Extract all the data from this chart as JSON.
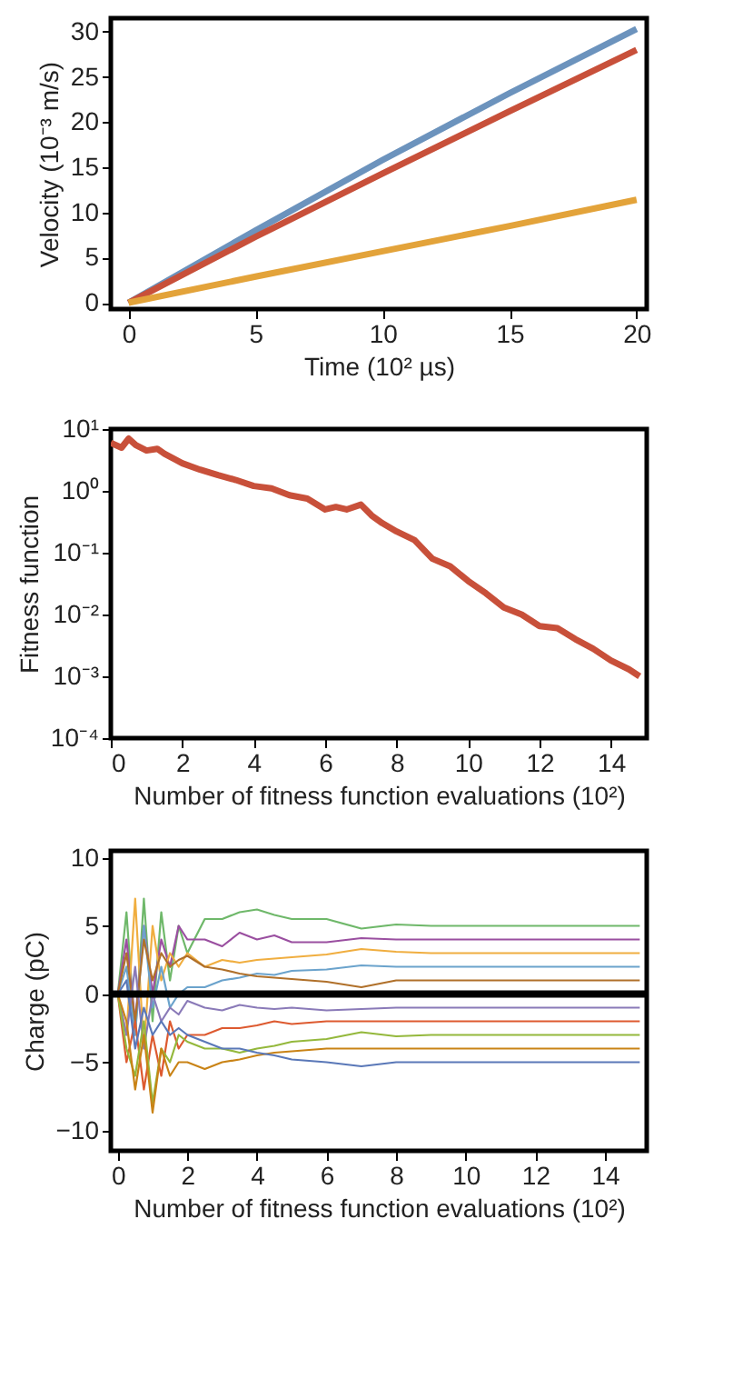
{
  "chart_data": [
    {
      "type": "line",
      "xlabel": "Time (10² µs)",
      "ylabel": "Velocity (10⁻³ m/s)",
      "xlim": [
        -0.7,
        20.4
      ],
      "ylim": [
        -0.7,
        31.5
      ],
      "xticks": [
        0,
        5,
        10,
        15,
        20
      ],
      "yticks": [
        0,
        5,
        10,
        15,
        20,
        25,
        30
      ],
      "grid": false,
      "legend": false,
      "marker": "none",
      "line_style": "solid",
      "x": [
        0,
        5,
        10,
        15,
        20
      ],
      "series": [
        {
          "color": "#6c93bd",
          "values": [
            0,
            8,
            15.8,
            23.2,
            30.3
          ]
        },
        {
          "color": "#c8503a",
          "values": [
            0,
            7.3,
            14.3,
            21.2,
            28
          ]
        },
        {
          "color": "#e3a33a",
          "values": [
            0,
            2.9,
            5.7,
            8.5,
            11.4
          ]
        }
      ]
    },
    {
      "type": "line",
      "xlabel": "Number of fitness function evaluations (10²)",
      "ylabel": "Fitness function",
      "log": "y",
      "xlim": [
        0,
        15
      ],
      "ylim": [
        0.0001,
        10
      ],
      "xticks": [
        0,
        2,
        4,
        6,
        8,
        10,
        12,
        14
      ],
      "yticks": [
        {
          "value": 10,
          "label": "10¹"
        },
        {
          "value": 1,
          "label": "10⁰"
        },
        {
          "value": 0.1,
          "label": "10⁻¹"
        },
        {
          "value": 0.01,
          "label": "10⁻²"
        },
        {
          "value": 0.001,
          "label": "10⁻³"
        },
        {
          "value": 0.0001,
          "label": "10⁻⁴"
        }
      ],
      "grid": false,
      "legend": false,
      "marker": "none",
      "line_style": "solid",
      "x": [
        0,
        0.3,
        0.5,
        0.7,
        1,
        1.3,
        1.5,
        2,
        2.5,
        3,
        3.5,
        4,
        4.5,
        5,
        5.5,
        6,
        6.3,
        6.6,
        7,
        7.3,
        7.6,
        8,
        8.5,
        9,
        9.5,
        10,
        10.5,
        11,
        11.5,
        12,
        12.5,
        13,
        13.5,
        14,
        14.5,
        14.8
      ],
      "series": [
        {
          "color": "#c8503a",
          "values": [
            6,
            5,
            7,
            5.5,
            4.5,
            4.8,
            4,
            2.8,
            2.2,
            1.8,
            1.5,
            1.2,
            1.1,
            0.85,
            0.75,
            0.5,
            0.55,
            0.5,
            0.6,
            0.4,
            0.3,
            0.22,
            0.16,
            0.08,
            0.06,
            0.035,
            0.022,
            0.013,
            0.01,
            0.0065,
            0.006,
            0.004,
            0.0028,
            0.0018,
            0.0013,
            0.001
          ]
        }
      ]
    },
    {
      "type": "line",
      "xlabel": "Number of fitness function evaluations (10²)",
      "ylabel": "Charge (pC)",
      "xlim": [
        -0.2,
        15.2
      ],
      "ylim": [
        -11.5,
        10.5
      ],
      "xticks": [
        0,
        2,
        4,
        6,
        8,
        10,
        12,
        14
      ],
      "yticks": [
        -10,
        -5,
        0,
        5,
        10
      ],
      "grid": false,
      "legend": false,
      "marker": "none",
      "line_style": "solid",
      "ref_lines": [
        {
          "axis": "y",
          "value": 0,
          "color": "#000000"
        }
      ],
      "x": [
        0,
        0.25,
        0.5,
        0.75,
        1,
        1.25,
        1.5,
        1.75,
        2,
        2.5,
        3,
        3.5,
        4,
        4.5,
        5,
        6,
        7,
        8,
        9,
        10,
        12,
        15
      ],
      "series": [
        {
          "color": "#6fb86a",
          "values": [
            0,
            6,
            -3,
            7,
            -2,
            6,
            1,
            5,
            3,
            5.5,
            5.5,
            6,
            6.2,
            5.8,
            5.5,
            5.5,
            4.8,
            5.1,
            5,
            5,
            5,
            5
          ]
        },
        {
          "color": "#9a4fa0",
          "values": [
            0,
            4,
            -2,
            5,
            0,
            4,
            2,
            5,
            4,
            4,
            3.5,
            4.5,
            4,
            4.3,
            3.8,
            3.8,
            4.1,
            4,
            4,
            4,
            4,
            4
          ]
        },
        {
          "color": "#f0ae40",
          "values": [
            0,
            -3,
            7,
            -4,
            5,
            1,
            3,
            2,
            3,
            2,
            2.5,
            2.3,
            2.5,
            2.6,
            2.7,
            2.9,
            3.3,
            3.1,
            3,
            3,
            3,
            3
          ]
        },
        {
          "color": "#6ba3cc",
          "values": [
            0,
            2,
            -3,
            5,
            -1,
            2,
            -1,
            0,
            0.5,
            0.5,
            1,
            1.2,
            1.5,
            1.4,
            1.7,
            1.8,
            2.1,
            2,
            2,
            2,
            2,
            2
          ]
        },
        {
          "color": "#b0702a",
          "values": [
            0,
            3,
            -2,
            4,
            1,
            3,
            2,
            2.5,
            2.8,
            2,
            1.8,
            1.5,
            1.3,
            1.2,
            1.1,
            0.9,
            0.5,
            1,
            1,
            1,
            1,
            1
          ]
        },
        {
          "color": "#8a7ab8",
          "values": [
            0,
            -3,
            2,
            -4,
            0,
            -2,
            -1,
            -1.5,
            -0.5,
            -1,
            -1.2,
            -0.8,
            -1,
            -1.1,
            -1,
            -1.2,
            -1.1,
            -1,
            -1,
            -1,
            -1,
            -1
          ]
        },
        {
          "color": "#dd5a30",
          "values": [
            0,
            -5,
            -2,
            -7,
            -3,
            -6,
            -2,
            -4,
            -3,
            -3,
            -2.5,
            -2.5,
            -2.3,
            -2,
            -2.2,
            -2,
            -2,
            -2,
            -2,
            -2,
            -2,
            -2
          ]
        },
        {
          "color": "#94b83c",
          "values": [
            0,
            -4,
            -6,
            -2,
            -8,
            -4,
            -5,
            -3,
            -3.5,
            -4,
            -4,
            -4.3,
            -4,
            -3.8,
            -3.5,
            -3.3,
            -2.8,
            -3.1,
            -3,
            -3,
            -3,
            -3
          ]
        },
        {
          "color": "#c98316",
          "values": [
            0,
            -2,
            -7,
            -3,
            -8.7,
            -4,
            -6,
            -5,
            -5,
            -5.5,
            -5,
            -4.8,
            -4.5,
            -4.3,
            -4.2,
            -4,
            -4,
            -4,
            -4,
            -4,
            -4,
            -4
          ]
        },
        {
          "color": "#5a78b8",
          "values": [
            0,
            1,
            -4,
            -1,
            -3,
            -2,
            -3,
            -2.5,
            -3,
            -3.5,
            -4,
            -4,
            -4.3,
            -4.5,
            -4.8,
            -5,
            -5.3,
            -5,
            -5,
            -5,
            -5,
            -5
          ]
        }
      ]
    }
  ]
}
